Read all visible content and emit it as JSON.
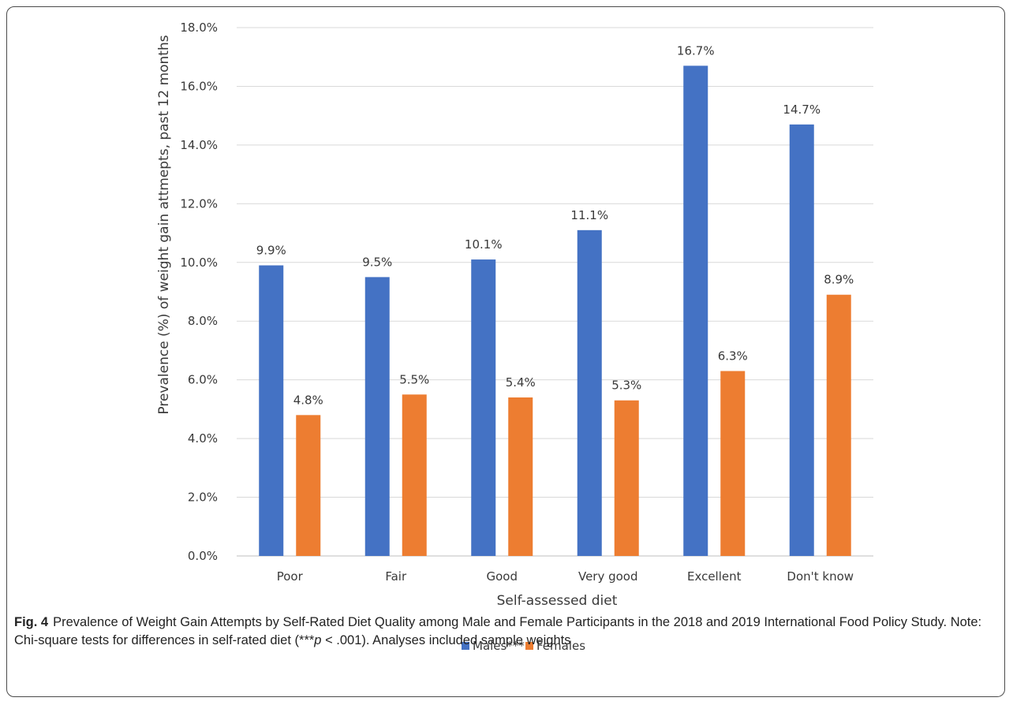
{
  "colors": {
    "males": "#4472C4",
    "females": "#ED7D31",
    "grid": "#d9d9d9",
    "text": "#3a3a3a"
  },
  "chart_data": {
    "type": "bar",
    "categories": [
      "Poor",
      "Fair",
      "Good",
      "Very good",
      "Excellent",
      "Don't know"
    ],
    "series": [
      {
        "name": "Males***",
        "values": [
          9.9,
          9.5,
          10.1,
          11.1,
          16.7,
          14.7
        ],
        "labels": [
          "9.9%",
          "9.5%",
          "10.1%",
          "11.1%",
          "16.7%",
          "14.7%"
        ]
      },
      {
        "name": "Females",
        "values": [
          4.8,
          5.5,
          5.4,
          5.3,
          6.3,
          8.9
        ],
        "labels": [
          "4.8%",
          "5.5%",
          "5.4%",
          "5.3%",
          "6.3%",
          "8.9%"
        ]
      }
    ],
    "xlabel": "Self-assessed diet",
    "ylabel": "Prevalence (%) of weight gain attmepts, past 12 months",
    "ylim": [
      0,
      18
    ],
    "yticks": [
      "0.0%",
      "2.0%",
      "4.0%",
      "6.0%",
      "8.0%",
      "10.0%",
      "12.0%",
      "14.0%",
      "16.0%",
      "18.0%"
    ],
    "grid": true,
    "legend_position": "bottom"
  },
  "caption": {
    "label": "Fig. 4",
    "text_before": "Prevalence of Weight Gain Attempts by Self-Rated Diet Quality among Male and Female Participants in the 2018 and 2019 International Food Policy Study. Note: Chi-square tests for differences in self-rated diet (",
    "stars": "***",
    "p": "p",
    "text_after": " < .001). Analyses included sample weights"
  }
}
